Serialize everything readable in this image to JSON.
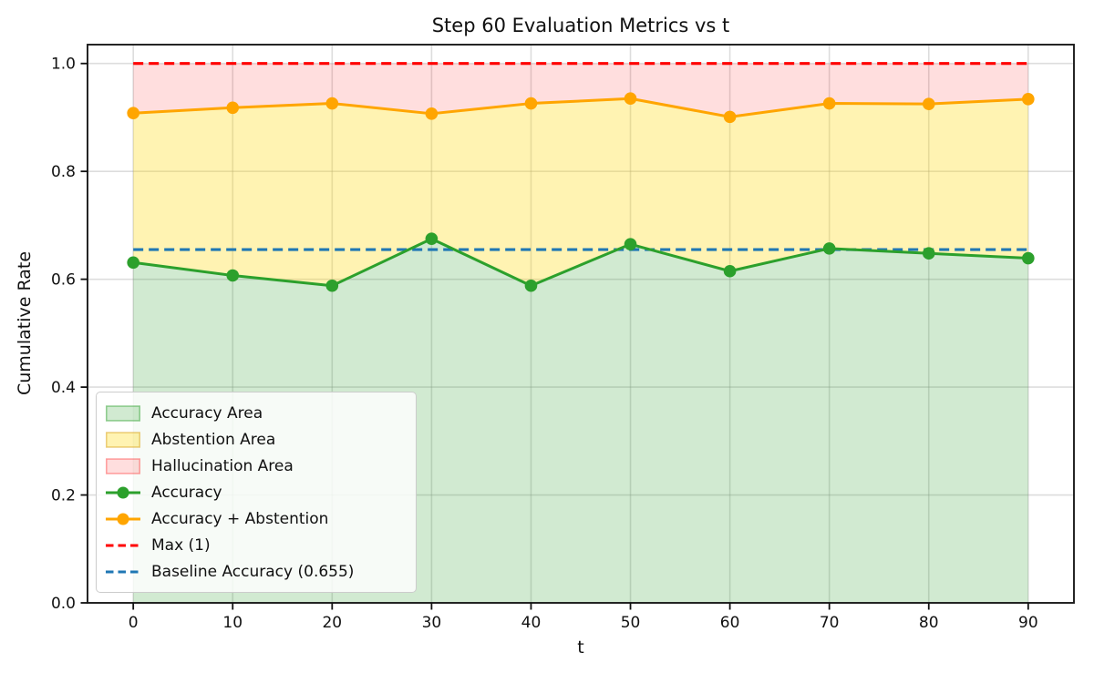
{
  "figure": {
    "background": "#ffffff"
  },
  "chart_data": {
    "type": "line",
    "title": "Step 60 Evaluation Metrics vs t",
    "xlabel": "t",
    "ylabel": "Cumulative Rate",
    "grid": true,
    "xlim": [
      -4.6,
      94.6
    ],
    "ylim": [
      0,
      1.035
    ],
    "xticks": [
      0,
      10,
      20,
      30,
      40,
      50,
      60,
      70,
      80,
      90
    ],
    "yticks": [
      0.0,
      0.2,
      0.4,
      0.6,
      0.8,
      1.0
    ],
    "x": [
      0,
      10,
      20,
      30,
      40,
      50,
      60,
      70,
      80,
      90
    ],
    "series": [
      {
        "name": "Accuracy",
        "color": "#2ca02c",
        "marker": "circle",
        "values": [
          0.631,
          0.607,
          0.588,
          0.675,
          0.588,
          0.665,
          0.615,
          0.657,
          0.648,
          0.639
        ]
      },
      {
        "name": "Accuracy + Abstention",
        "color": "#ffa500",
        "marker": "circle",
        "values": [
          0.908,
          0.918,
          0.926,
          0.907,
          0.926,
          0.935,
          0.901,
          0.926,
          0.925,
          0.934
        ]
      }
    ],
    "reference_lines": [
      {
        "name": "Max (1)",
        "value": 1.0,
        "color": "#ff0000",
        "style": "dashed"
      },
      {
        "name": "Baseline Accuracy (0.655)",
        "value": 0.655,
        "color": "#1f77b4",
        "style": "dashed"
      }
    ],
    "areas": [
      {
        "name": "Accuracy Area",
        "from": "zero",
        "to": "Accuracy",
        "fill": "rgba(44,160,44,0.22)"
      },
      {
        "name": "Abstention Area",
        "from": "Accuracy",
        "to": "Accuracy + Abstention",
        "fill": "rgba(255,215,0,0.30)"
      },
      {
        "name": "Hallucination Area",
        "from": "Accuracy + Abstention",
        "to": "one",
        "fill": "rgba(255,0,0,0.13)"
      }
    ],
    "legend": {
      "position": "lower left",
      "entries": [
        {
          "label": "Accuracy Area",
          "type": "patch",
          "fill": "rgba(44,160,44,0.22)",
          "edge": "rgba(44,160,44,0.5)"
        },
        {
          "label": "Abstention Area",
          "type": "patch",
          "fill": "rgba(255,215,0,0.30)",
          "edge": "rgba(218,165,32,0.55)"
        },
        {
          "label": "Hallucination Area",
          "type": "patch",
          "fill": "rgba(255,0,0,0.13)",
          "edge": "rgba(255,0,0,0.35)"
        },
        {
          "label": "Accuracy",
          "type": "line-marker",
          "color": "#2ca02c"
        },
        {
          "label": "Accuracy + Abstention",
          "type": "line-marker",
          "color": "#ffa500"
        },
        {
          "label": "Max (1)",
          "type": "dash",
          "color": "#ff0000"
        },
        {
          "label": "Baseline Accuracy (0.655)",
          "type": "dash",
          "color": "#1f77b4"
        }
      ]
    },
    "style": {
      "grid_color": "rgba(150,150,150,0.32)",
      "spine_color": "#1a1a1a",
      "tick_color": "#111111",
      "text_color": "#111111"
    }
  }
}
